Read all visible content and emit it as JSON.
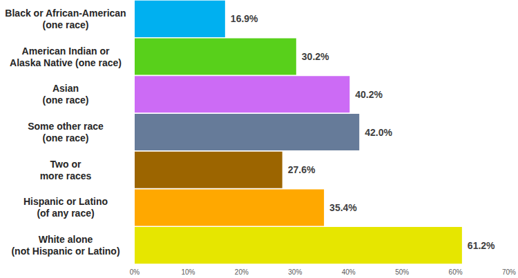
{
  "chart_data": {
    "type": "bar",
    "orientation": "horizontal",
    "categories": [
      "Black or African-American\n(one race)",
      "American Indian or\nAlaska Native (one race)",
      "Asian\n(one race)",
      "Some other race\n(one race)",
      "Two or\nmore races",
      "Hispanic or Latino\n(of any race)",
      "White alone\n(not Hispanic or Latino)"
    ],
    "values": [
      16.9,
      30.2,
      40.2,
      42.0,
      27.6,
      35.4,
      61.2
    ],
    "value_labels": [
      "16.9%",
      "30.2%",
      "40.2%",
      "42.0%",
      "27.6%",
      "35.4%",
      "61.2%"
    ],
    "colors": [
      "#00b0f0",
      "#58d01b",
      "#cc6bf5",
      "#667b99",
      "#9c6500",
      "#ffa800",
      "#e6e600"
    ],
    "data_labels": true,
    "grid": false,
    "xlim": [
      0,
      70
    ],
    "xticks": [
      {
        "value": 0,
        "label": "0%"
      },
      {
        "value": 10,
        "label": "10%"
      },
      {
        "value": 20,
        "label": "20%"
      },
      {
        "value": 30,
        "label": "30%"
      },
      {
        "value": 40,
        "label": "40%"
      },
      {
        "value": 50,
        "label": "50%"
      },
      {
        "value": 60,
        "label": "60%"
      },
      {
        "value": 70,
        "label": "70%"
      }
    ]
  }
}
